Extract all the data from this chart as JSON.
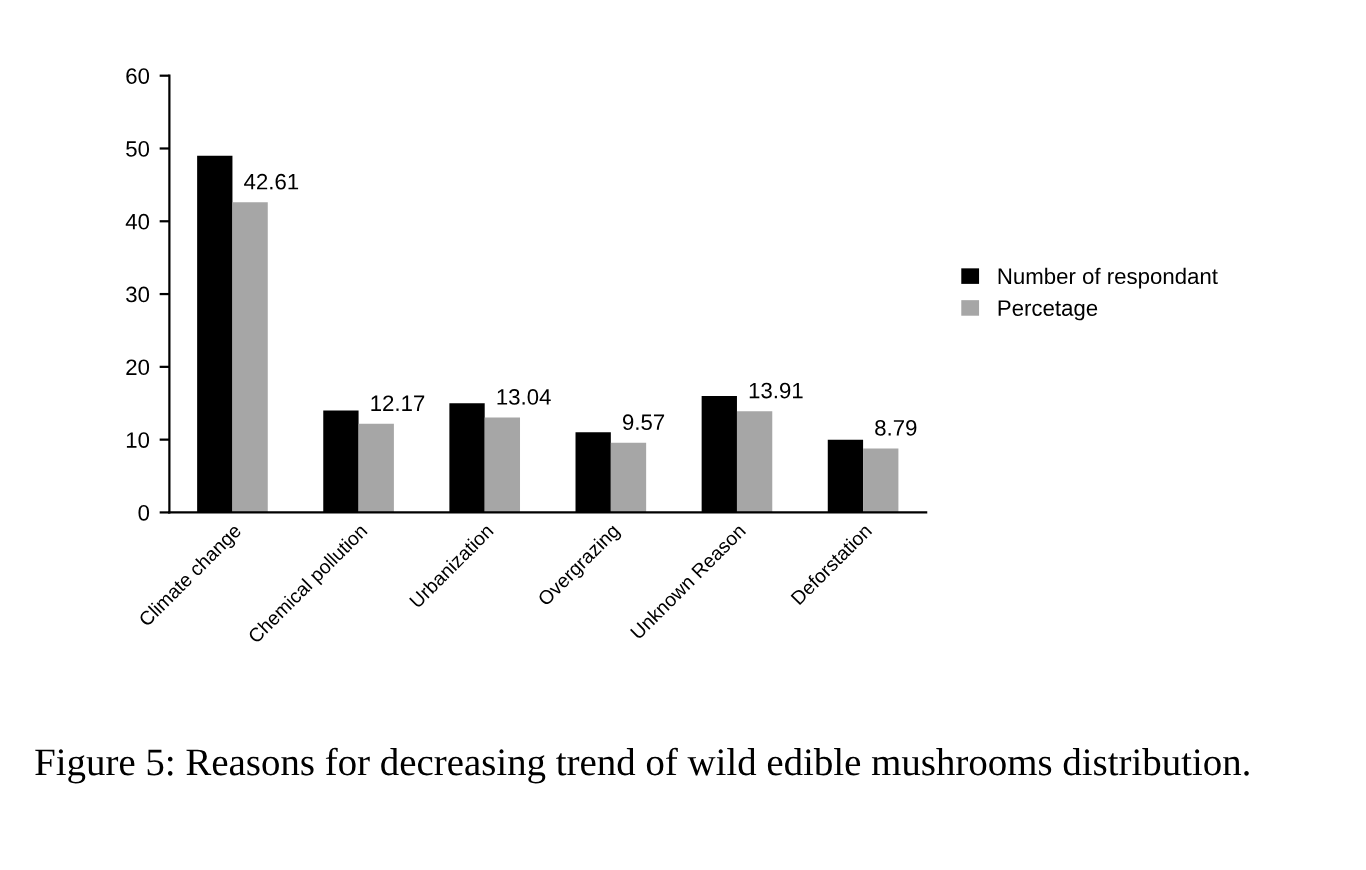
{
  "chart_data": {
    "type": "bar",
    "categories": [
      "Climate change",
      "Chemical pollution",
      "Urbanization",
      "Overgrazing",
      "Unknown Reason",
      "Deforstation"
    ],
    "series": [
      {
        "name": "Number of respondant",
        "color": "#000000",
        "values": [
          49,
          14,
          15,
          11,
          16,
          10
        ]
      },
      {
        "name": "Percetage",
        "color": "#a6a6a6",
        "values": [
          42.61,
          12.17,
          13.04,
          9.57,
          13.91,
          8.79
        ],
        "value_labels": [
          "42.61",
          "12.17",
          "13.04",
          "9.57",
          "13.91",
          "8.79"
        ]
      }
    ],
    "ylim": [
      0,
      60
    ],
    "yticks": [
      0,
      10,
      20,
      30,
      40,
      50,
      60
    ],
    "grid": false,
    "legend": "right",
    "annotations": [
      "Figure 5: Reasons for decreasing trend of wild edible mushrooms distribution."
    ]
  }
}
